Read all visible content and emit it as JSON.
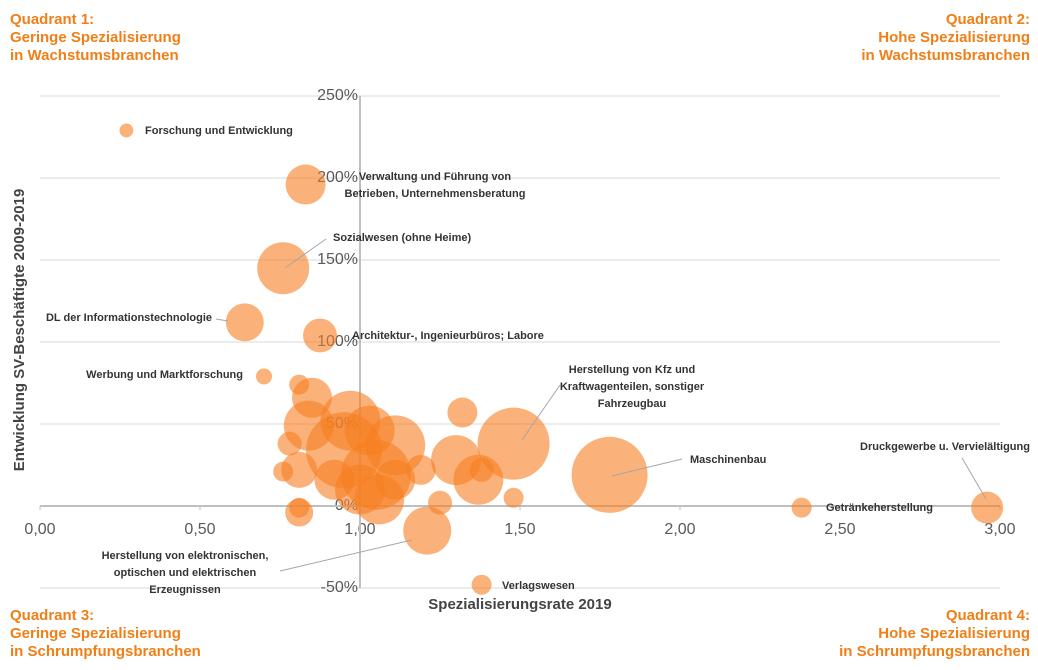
{
  "chart_data": {
    "type": "bubble",
    "xlabel": "Spezialisierungsrate 2019",
    "ylabel": "Entwicklung SV-Beschäftigte 2009-2019",
    "quadrants": [
      [
        "Quadrant 1:",
        "Geringe Spezialisierung",
        "in Wachstumsbranchen"
      ],
      [
        "Quadrant 2:",
        "Hohe Spezialisierung",
        "in Wachstumsbranchen"
      ],
      [
        "Quadrant 3:",
        "Geringe Spezialisierung",
        "in Schrumpfungsbranchen"
      ],
      [
        "Quadrant 4:",
        "Hohe Spezialisierung",
        "in Schrumpfungsbranchen"
      ]
    ],
    "color": "#f77f22",
    "labels": [
      [
        "Forschung und Entwicklung"
      ],
      [
        "Verwaltung und Führung von",
        "Betrieben, Unternehmensberatung"
      ],
      [
        "Sozialwesen (ohne Heime)"
      ],
      [
        "DL der Informationstechnologie"
      ],
      [
        "Architektur-, Ingenieurbüros;  Labore"
      ],
      [
        "Werbung und Marktforschung"
      ],
      [
        "Herstellung von Kfz und",
        "Kraftwagenteilen, sonstiger",
        "Fahrzeugbau"
      ],
      [
        "Maschinenbau"
      ],
      [
        "Druckgewerbe u. Vervielältigung"
      ],
      [
        "Getränkeherstellung"
      ],
      [
        "Verlagswesen"
      ],
      [
        "Herstellung von elektronischen,",
        "optischen und elektrischen",
        "Erzeugnissen"
      ],
      null,
      null,
      null,
      null,
      null,
      null,
      null,
      null,
      null,
      null,
      null,
      null,
      null,
      null,
      null,
      null,
      null,
      null,
      null,
      null,
      null,
      null,
      null,
      null
    ],
    "x": [
      0.27,
      0.83,
      0.76,
      0.64,
      0.875,
      0.7,
      1.48,
      1.78,
      2.96,
      2.38,
      1.38,
      1.21,
      0.81,
      0.85,
      1.32,
      0.84,
      0.97,
      1.03,
      1.11,
      0.95,
      0.78,
      0.81,
      0.76,
      1.19,
      1.3,
      1.37,
      1.38,
      1.05,
      1.11,
      1.0,
      0.92,
      1.25,
      1.48,
      0.81,
      0.81,
      1.06
    ],
    "y": [
      229,
      196,
      145,
      112,
      104,
      79,
      38,
      19,
      -1,
      -1,
      -48,
      -15,
      74,
      66,
      57,
      49,
      52,
      46,
      37,
      34,
      38,
      22,
      21,
      22,
      28,
      16,
      22,
      19,
      16,
      10,
      16,
      2,
      5,
      -4,
      -1,
      4
    ],
    "size": [
      12,
      100,
      169,
      90,
      72,
      16,
      324,
      361,
      64,
      25,
      25,
      144,
      25,
      100,
      56,
      156,
      225,
      156,
      225,
      361,
      36,
      81,
      25,
      56,
      156,
      156,
      36,
      306,
      100,
      156,
      100,
      36,
      25,
      49,
      25,
      156
    ],
    "xlim": [
      0,
      3
    ],
    "ylim": [
      -50,
      250
    ],
    "xticks": [
      {
        "value": 0,
        "label": "0,00"
      },
      {
        "value": 0.5,
        "label": "0,50"
      },
      {
        "value": 1,
        "label": "1,00"
      },
      {
        "value": 1.5,
        "label": "1,50"
      },
      {
        "value": 2,
        "label": "2,00"
      },
      {
        "value": 2.5,
        "label": "2,50"
      },
      {
        "value": 3,
        "label": "3,00"
      }
    ],
    "yticks": [
      {
        "value": -50,
        "label": "-50%"
      },
      {
        "value": 0,
        "label": "0%"
      },
      {
        "value": 50,
        "label": "50%"
      },
      {
        "value": 100,
        "label": "100%"
      },
      {
        "value": 150,
        "label": "150%"
      },
      {
        "value": 200,
        "label": "200%"
      },
      {
        "value": 250,
        "label": "250%"
      }
    ],
    "axis_cross": [
      1,
      0
    ],
    "grid": true
  }
}
